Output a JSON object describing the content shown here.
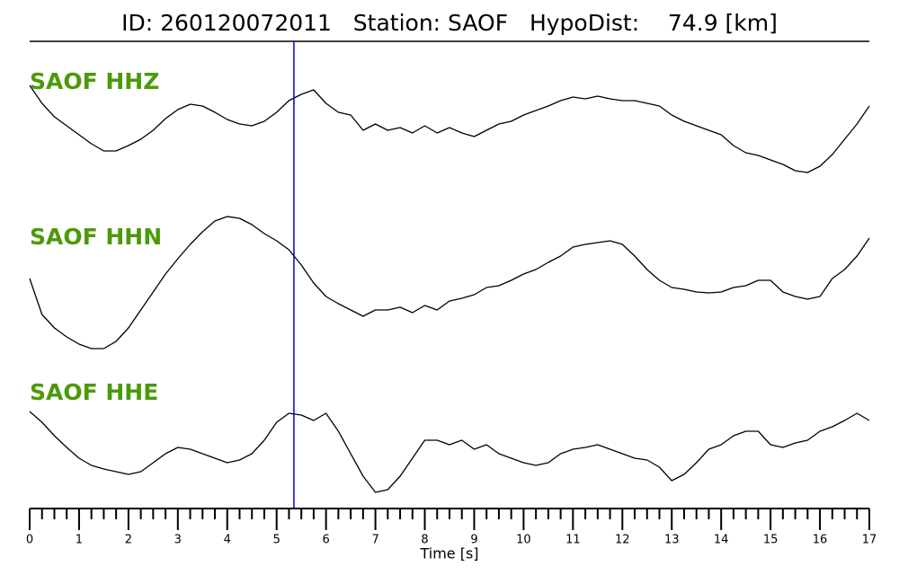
{
  "chart_data": {
    "type": "seismogram",
    "title": "ID: 260120072011   Station: SAOF   HypoDist:    74.9 [km]",
    "xlabel": "Time [s]",
    "xlim": [
      0,
      17
    ],
    "xticks": [
      0,
      1,
      2,
      3,
      4,
      5,
      6,
      7,
      8,
      9,
      10,
      11,
      12,
      13,
      14,
      15,
      16,
      17
    ],
    "ylim": [
      -80,
      80
    ],
    "pick_time": 5.35,
    "pick_color": "#0000cc",
    "x": [
      0,
      0.25,
      0.5,
      0.75,
      1,
      1.25,
      1.5,
      1.75,
      2,
      2.25,
      2.5,
      2.75,
      3,
      3.25,
      3.5,
      3.75,
      4,
      4.25,
      4.5,
      4.75,
      5,
      5.25,
      5.5,
      5.75,
      6,
      6.25,
      6.5,
      6.75,
      7,
      7.25,
      7.5,
      7.75,
      8,
      8.25,
      8.5,
      8.75,
      9,
      9.25,
      9.5,
      9.75,
      10,
      10.25,
      10.5,
      10.75,
      11,
      11.25,
      11.5,
      11.75,
      12,
      12.25,
      12.5,
      12.75,
      13,
      13.25,
      13.5,
      13.75,
      14,
      14.25,
      14.5,
      14.75,
      15,
      15.25,
      15.5,
      15.75,
      16,
      16.25,
      16.5,
      16.75,
      17
    ],
    "series": [
      {
        "name": "SAOF HHZ",
        "color": "#000000",
        "label_color": "#4c9a0a",
        "values": [
          50,
          30,
          15,
          5,
          -5,
          -15,
          -23,
          -23,
          -17,
          -10,
          0,
          13,
          23,
          29,
          27,
          20,
          12,
          7,
          5,
          10,
          20,
          33,
          40,
          45,
          30,
          20,
          17,
          0,
          7,
          0,
          3,
          -3,
          5,
          -3,
          3,
          -3,
          -7,
          0,
          7,
          10,
          17,
          22,
          27,
          33,
          37,
          35,
          38,
          35,
          33,
          33,
          30,
          27,
          17,
          10,
          5,
          0,
          -5,
          -17,
          -25,
          -28,
          -33,
          -38,
          -45,
          -47,
          -40,
          -27,
          -10,
          7,
          27
        ]
      },
      {
        "name": "SAOF HHN",
        "color": "#000000",
        "label_color": "#4c9a0a",
        "values": [
          5,
          -35,
          -50,
          -60,
          -68,
          -73,
          -73,
          -65,
          -50,
          -30,
          -10,
          10,
          27,
          43,
          57,
          69,
          74,
          72,
          65,
          55,
          47,
          37,
          20,
          0,
          -15,
          -23,
          -30,
          -37,
          -30,
          -30,
          -27,
          -33,
          -25,
          -30,
          -20,
          -17,
          -13,
          -5,
          -3,
          3,
          10,
          15,
          23,
          30,
          40,
          43,
          45,
          47,
          43,
          30,
          15,
          3,
          -5,
          -7,
          -10,
          -11,
          -10,
          -5,
          -3,
          3,
          3,
          -10,
          -15,
          -18,
          -15,
          5,
          15,
          30,
          50
        ]
      },
      {
        "name": "SAOF HHE",
        "color": "#000000",
        "label_color": "#4c9a0a",
        "values": [
          42,
          30,
          15,
          2,
          -10,
          -18,
          -22,
          -25,
          -28,
          -25,
          -15,
          -5,
          2,
          0,
          -5,
          -10,
          -15,
          -12,
          -5,
          10,
          30,
          40,
          38,
          32,
          40,
          20,
          -5,
          -30,
          -48,
          -45,
          -30,
          -10,
          10,
          10,
          5,
          10,
          0,
          5,
          -5,
          -10,
          -15,
          -18,
          -15,
          -5,
          0,
          2,
          5,
          0,
          -5,
          -10,
          -12,
          -20,
          -35,
          -28,
          -15,
          0,
          5,
          15,
          20,
          20,
          5,
          2,
          7,
          10,
          20,
          25,
          32,
          40,
          32
        ]
      }
    ]
  }
}
